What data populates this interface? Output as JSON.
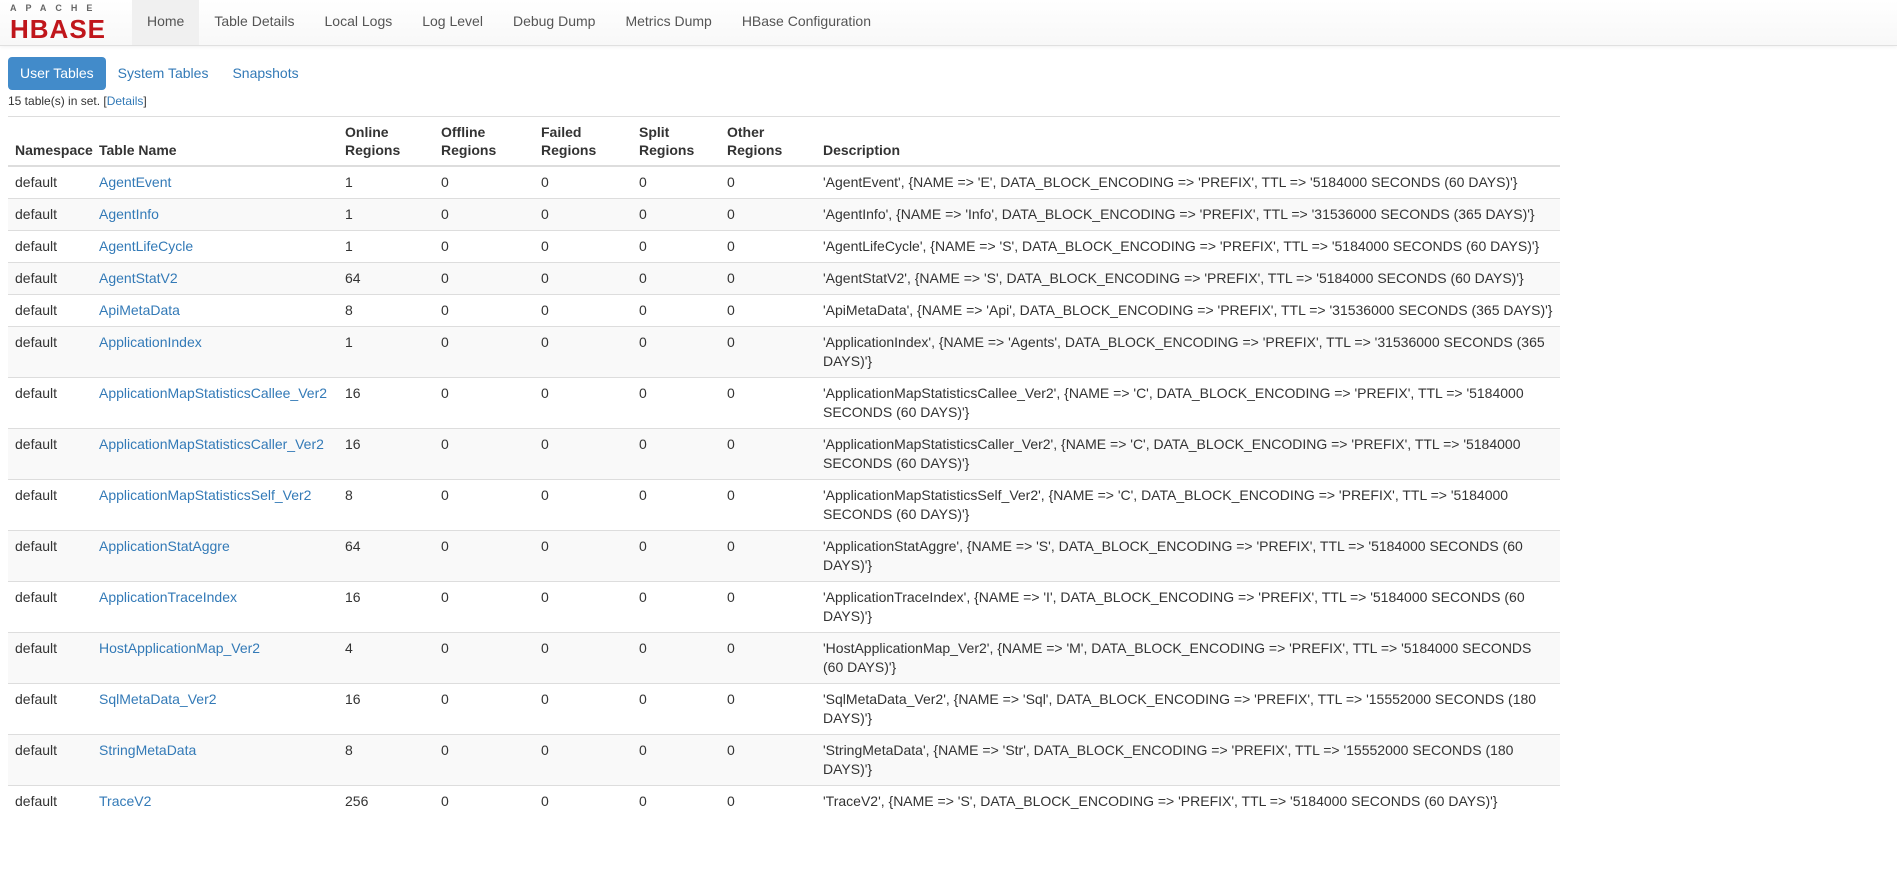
{
  "logo": {
    "top": "APACHE",
    "main": "HBASE"
  },
  "nav": [
    "Home",
    "Table Details",
    "Local Logs",
    "Log Level",
    "Debug Dump",
    "Metrics Dump",
    "HBase Configuration"
  ],
  "tabs": [
    "User Tables",
    "System Tables",
    "Snapshots"
  ],
  "summary": {
    "text": "15 table(s) in set. [",
    "link": "Details",
    "end": "]"
  },
  "columns": [
    "Namespace",
    "Table Name",
    "Online Regions",
    "Offline Regions",
    "Failed Regions",
    "Split Regions",
    "Other Regions",
    "Description"
  ],
  "rows": [
    [
      "default",
      "AgentEvent",
      "1",
      "0",
      "0",
      "0",
      "0",
      "'AgentEvent', {NAME => 'E', DATA_BLOCK_ENCODING => 'PREFIX', TTL => '5184000 SECONDS (60 DAYS)'}"
    ],
    [
      "default",
      "AgentInfo",
      "1",
      "0",
      "0",
      "0",
      "0",
      "'AgentInfo', {NAME => 'Info', DATA_BLOCK_ENCODING => 'PREFIX', TTL => '31536000 SECONDS (365 DAYS)'}"
    ],
    [
      "default",
      "AgentLifeCycle",
      "1",
      "0",
      "0",
      "0",
      "0",
      "'AgentLifeCycle', {NAME => 'S', DATA_BLOCK_ENCODING => 'PREFIX', TTL => '5184000 SECONDS (60 DAYS)'}"
    ],
    [
      "default",
      "AgentStatV2",
      "64",
      "0",
      "0",
      "0",
      "0",
      "'AgentStatV2', {NAME => 'S', DATA_BLOCK_ENCODING => 'PREFIX', TTL => '5184000 SECONDS (60 DAYS)'}"
    ],
    [
      "default",
      "ApiMetaData",
      "8",
      "0",
      "0",
      "0",
      "0",
      "'ApiMetaData', {NAME => 'Api', DATA_BLOCK_ENCODING => 'PREFIX', TTL => '31536000 SECONDS (365 DAYS)'}"
    ],
    [
      "default",
      "ApplicationIndex",
      "1",
      "0",
      "0",
      "0",
      "0",
      "'ApplicationIndex', {NAME => 'Agents', DATA_BLOCK_ENCODING => 'PREFIX', TTL => '31536000 SECONDS (365 DAYS)'}"
    ],
    [
      "default",
      "ApplicationMapStatisticsCallee_Ver2",
      "16",
      "0",
      "0",
      "0",
      "0",
      "'ApplicationMapStatisticsCallee_Ver2', {NAME => 'C', DATA_BLOCK_ENCODING => 'PREFIX', TTL => '5184000 SECONDS (60 DAYS)'}"
    ],
    [
      "default",
      "ApplicationMapStatisticsCaller_Ver2",
      "16",
      "0",
      "0",
      "0",
      "0",
      "'ApplicationMapStatisticsCaller_Ver2', {NAME => 'C', DATA_BLOCK_ENCODING => 'PREFIX', TTL => '5184000 SECONDS (60 DAYS)'}"
    ],
    [
      "default",
      "ApplicationMapStatisticsSelf_Ver2",
      "8",
      "0",
      "0",
      "0",
      "0",
      "'ApplicationMapStatisticsSelf_Ver2', {NAME => 'C', DATA_BLOCK_ENCODING => 'PREFIX', TTL => '5184000 SECONDS (60 DAYS)'}"
    ],
    [
      "default",
      "ApplicationStatAggre",
      "64",
      "0",
      "0",
      "0",
      "0",
      "'ApplicationStatAggre', {NAME => 'S', DATA_BLOCK_ENCODING => 'PREFIX', TTL => '5184000 SECONDS (60 DAYS)'}"
    ],
    [
      "default",
      "ApplicationTraceIndex",
      "16",
      "0",
      "0",
      "0",
      "0",
      "'ApplicationTraceIndex', {NAME => 'I', DATA_BLOCK_ENCODING => 'PREFIX', TTL => '5184000 SECONDS (60 DAYS)'}"
    ],
    [
      "default",
      "HostApplicationMap_Ver2",
      "4",
      "0",
      "0",
      "0",
      "0",
      "'HostApplicationMap_Ver2', {NAME => 'M', DATA_BLOCK_ENCODING => 'PREFIX', TTL => '5184000 SECONDS (60 DAYS)'}"
    ],
    [
      "default",
      "SqlMetaData_Ver2",
      "16",
      "0",
      "0",
      "0",
      "0",
      "'SqlMetaData_Ver2', {NAME => 'Sql', DATA_BLOCK_ENCODING => 'PREFIX', TTL => '15552000 SECONDS (180 DAYS)'}"
    ],
    [
      "default",
      "StringMetaData",
      "8",
      "0",
      "0",
      "0",
      "0",
      "'StringMetaData', {NAME => 'Str', DATA_BLOCK_ENCODING => 'PREFIX', TTL => '15552000 SECONDS (180 DAYS)'}"
    ],
    [
      "default",
      "TraceV2",
      "256",
      "0",
      "0",
      "0",
      "0",
      "'TraceV2', {NAME => 'S', DATA_BLOCK_ENCODING => 'PREFIX', TTL => '5184000 SECONDS (60 DAYS)'}"
    ]
  ]
}
